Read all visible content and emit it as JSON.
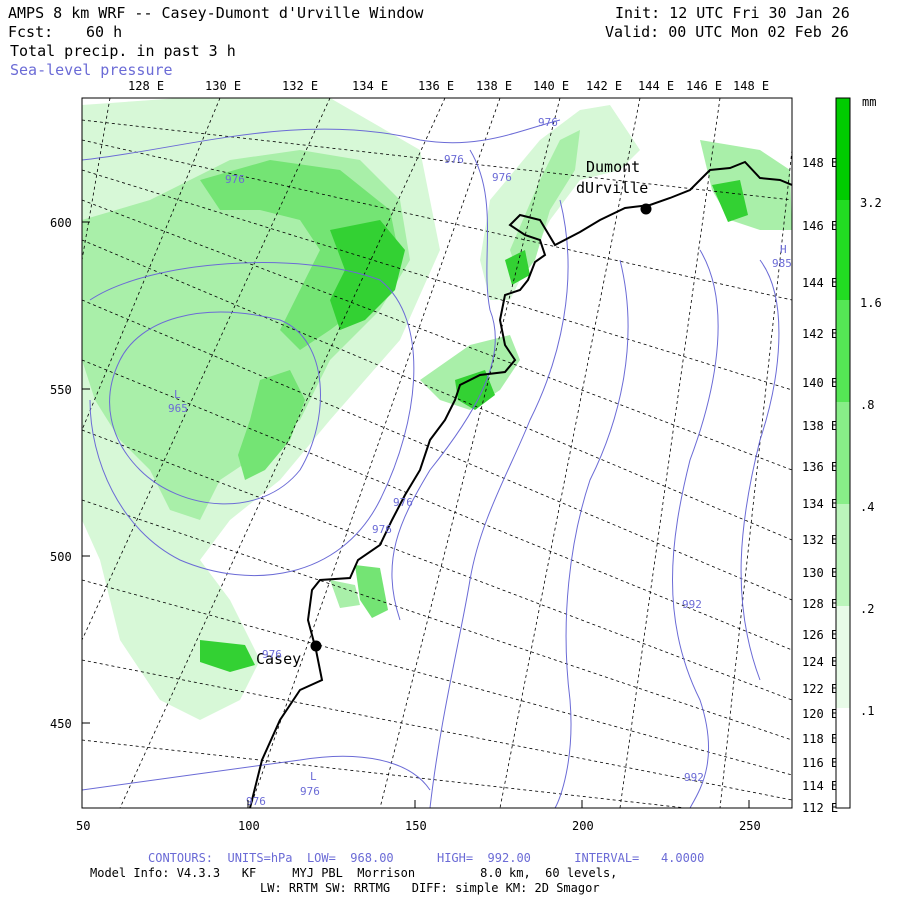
{
  "header": {
    "title": "AMPS 8 km WRF -- Casey-Dumont d'Urville Window",
    "fcst_label": "Fcst:",
    "fcst_value": "60 h",
    "field": "Total precip. in past 3 h",
    "overlay": "Sea-level pressure",
    "init": "Init: 12 UTC Fri 30 Jan 26",
    "valid": "Valid: 00 UTC Mon 02 Feb 26"
  },
  "top_axis": [
    "128 E",
    "130 E",
    "132 E",
    "134 E",
    "136 E",
    "138 E",
    "140 E",
    "142 E",
    "144 E",
    "146 E",
    "148 E"
  ],
  "right_axis": [
    "148 E",
    "146 E",
    "144 E",
    "142 E",
    "140 E",
    "138 E",
    "136 E",
    "134 E",
    "132 E",
    "130 E",
    "128 E",
    "126 E",
    "124 E",
    "122 E",
    "120 E",
    "118 E",
    "116 E",
    "114 E",
    "112 E"
  ],
  "left_axis": [
    "600",
    "550",
    "500",
    "450"
  ],
  "bottom_axis": [
    "50",
    "100",
    "150",
    "200",
    "250"
  ],
  "colorbar": {
    "unit": "mm",
    "labels": [
      "3.2",
      "1.6",
      ".8",
      ".4",
      ".2",
      ".1"
    ],
    "colors": [
      "#00cc00",
      "#22dd22",
      "#55e655",
      "#88ee88",
      "#bbf5bb",
      "#e8fbe8"
    ]
  },
  "stations": [
    {
      "name_line1": "Dumont",
      "name_line2": "dUrville"
    },
    {
      "name_line1": "Casey",
      "name_line2": ""
    }
  ],
  "contour_labels": [
    "976",
    "976",
    "976",
    "976",
    "976",
    "976",
    "976",
    "976",
    "992",
    "992",
    "L",
    "L",
    "H",
    "985",
    "965",
    "976"
  ],
  "footer": {
    "contours": "CONTOURS:  UNITS=hPa  LOW=  968.00      HIGH=  992.00      INTERVAL=   4.0000",
    "model_info": "Model Info: V4.3.3   KF     MYJ PBL  Morrison         8.0 km,  60 levels,",
    "physics": "LW: RRTM SW: RRTMG   DIFF: simple KM: 2D Smagor"
  }
}
